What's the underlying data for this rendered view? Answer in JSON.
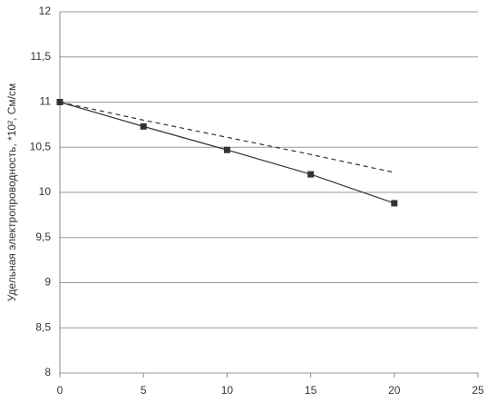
{
  "chart_data": {
    "type": "line",
    "y_label": "Удельная электропроводность, *10², См/см",
    "x": [
      0,
      5,
      10,
      15,
      20
    ],
    "series": [
      {
        "color": "#333333",
        "line_style": "solid",
        "markers": true,
        "values": [
          11,
          10.73,
          10.47,
          10.2,
          9.88
        ]
      },
      {
        "color": "#333333",
        "line_style": "dashed",
        "markers": false,
        "values": [
          11,
          10.8,
          10.61,
          10.42,
          10.22
        ]
      }
    ],
    "xlim": [
      0,
      25
    ],
    "xticks": [
      0,
      5,
      10,
      15,
      20,
      25
    ],
    "ylim": [
      8,
      12
    ],
    "yticks": [
      8,
      {
        "value": 8.5,
        "label": "8,5"
      },
      9,
      {
        "value": 9.5,
        "label": "9,5"
      },
      10,
      {
        "value": 10.5,
        "label": "10,5"
      },
      11,
      {
        "value": 11.5,
        "label": "11,5"
      },
      12
    ],
    "grid": true
  }
}
